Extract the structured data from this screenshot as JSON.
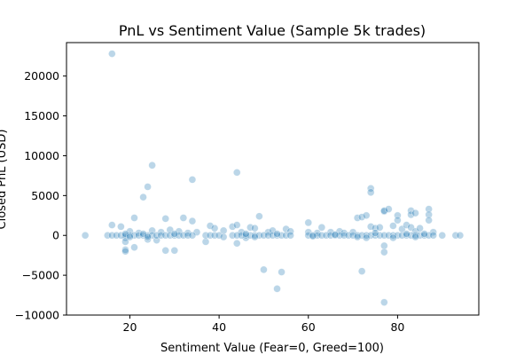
{
  "chart_data": {
    "type": "scatter",
    "title": "PnL vs Sentiment Value (Sample 5k trades)",
    "xlabel": "Sentiment Value (Fear=0, Greed=100)",
    "ylabel": "Closed PnL (USD)",
    "xlim": [
      5.8,
      98.2
    ],
    "ylim": [
      -10000,
      24200
    ],
    "xticks": [
      20,
      40,
      60,
      80
    ],
    "yticks": [
      -10000,
      -5000,
      0,
      5000,
      10000,
      15000,
      20000
    ],
    "xtick_labels": [
      "20",
      "40",
      "60",
      "80"
    ],
    "ytick_labels": [
      "−10000",
      "−5000",
      "0",
      "5000",
      "10000",
      "15000",
      "20000"
    ],
    "grid": false,
    "point_color": "#1f77b4",
    "point_opacity": 0.3,
    "series": [
      {
        "points": [
          [
            16,
            22800
          ],
          [
            25,
            8800
          ],
          [
            34,
            7000
          ],
          [
            44,
            7900
          ],
          [
            24,
            6100
          ],
          [
            23,
            4800
          ],
          [
            21,
            2200
          ],
          [
            28,
            2100
          ],
          [
            32,
            2200
          ],
          [
            34,
            1800
          ],
          [
            16,
            1300
          ],
          [
            18,
            1100
          ],
          [
            19,
            -300
          ],
          [
            19,
            -800
          ],
          [
            19,
            -1800
          ],
          [
            19,
            -2000
          ],
          [
            21,
            -1500
          ],
          [
            24,
            -500
          ],
          [
            26,
            -600
          ],
          [
            28,
            -1900
          ],
          [
            30,
            -1900
          ],
          [
            20,
            500
          ],
          [
            22,
            300
          ],
          [
            25,
            600
          ],
          [
            27,
            400
          ],
          [
            29,
            700
          ],
          [
            31,
            500
          ],
          [
            33,
            300
          ],
          [
            35,
            400
          ],
          [
            37,
            -800
          ],
          [
            38,
            1200
          ],
          [
            39,
            900
          ],
          [
            41,
            600
          ],
          [
            43,
            1100
          ],
          [
            44,
            1300
          ],
          [
            44,
            -1000
          ],
          [
            45,
            400
          ],
          [
            46,
            -300
          ],
          [
            47,
            1000
          ],
          [
            48,
            900
          ],
          [
            49,
            2400
          ],
          [
            50,
            -4300
          ],
          [
            51,
            400
          ],
          [
            52,
            600
          ],
          [
            53,
            -6700
          ],
          [
            54,
            -4600
          ],
          [
            55,
            800
          ],
          [
            56,
            500
          ],
          [
            60,
            1600
          ],
          [
            60,
            400
          ],
          [
            62,
            300
          ],
          [
            63,
            1000
          ],
          [
            65,
            400
          ],
          [
            67,
            500
          ],
          [
            68,
            300
          ],
          [
            70,
            400
          ],
          [
            71,
            2200
          ],
          [
            72,
            2300
          ],
          [
            72,
            -4500
          ],
          [
            73,
            2500
          ],
          [
            74,
            5900
          ],
          [
            74,
            5400
          ],
          [
            74,
            1100
          ],
          [
            75,
            900
          ],
          [
            76,
            1000
          ],
          [
            77,
            3000
          ],
          [
            77,
            3100
          ],
          [
            77,
            -1300
          ],
          [
            77,
            -2100
          ],
          [
            77,
            -8400
          ],
          [
            78,
            3300
          ],
          [
            79,
            1200
          ],
          [
            80,
            2500
          ],
          [
            80,
            1900
          ],
          [
            81,
            800
          ],
          [
            82,
            1300
          ],
          [
            83,
            3100
          ],
          [
            83,
            2600
          ],
          [
            83,
            1000
          ],
          [
            84,
            2800
          ],
          [
            84,
            500
          ],
          [
            85,
            900
          ],
          [
            87,
            3300
          ],
          [
            87,
            2600
          ],
          [
            87,
            1900
          ],
          [
            88,
            400
          ],
          [
            10,
            0
          ],
          [
            15,
            0
          ],
          [
            16,
            0
          ],
          [
            17,
            0
          ],
          [
            18,
            0
          ],
          [
            19,
            0
          ],
          [
            20,
            0
          ],
          [
            21,
            0
          ],
          [
            22,
            0
          ],
          [
            23,
            0
          ],
          [
            24,
            0
          ],
          [
            25,
            0
          ],
          [
            26,
            0
          ],
          [
            27,
            0
          ],
          [
            28,
            0
          ],
          [
            29,
            0
          ],
          [
            30,
            0
          ],
          [
            31,
            0
          ],
          [
            32,
            0
          ],
          [
            33,
            0
          ],
          [
            34,
            0
          ],
          [
            37,
            0
          ],
          [
            38,
            0
          ],
          [
            39,
            0
          ],
          [
            40,
            0
          ],
          [
            43,
            0
          ],
          [
            44,
            0
          ],
          [
            45,
            0
          ],
          [
            46,
            0
          ],
          [
            47,
            0
          ],
          [
            48,
            0
          ],
          [
            49,
            0
          ],
          [
            50,
            0
          ],
          [
            51,
            0
          ],
          [
            52,
            0
          ],
          [
            53,
            0
          ],
          [
            54,
            0
          ],
          [
            55,
            0
          ],
          [
            56,
            0
          ],
          [
            60,
            0
          ],
          [
            61,
            0
          ],
          [
            62,
            0
          ],
          [
            63,
            0
          ],
          [
            64,
            0
          ],
          [
            65,
            0
          ],
          [
            66,
            0
          ],
          [
            67,
            0
          ],
          [
            68,
            0
          ],
          [
            69,
            0
          ],
          [
            70,
            0
          ],
          [
            71,
            0
          ],
          [
            72,
            0
          ],
          [
            73,
            0
          ],
          [
            74,
            0
          ],
          [
            75,
            0
          ],
          [
            76,
            0
          ],
          [
            77,
            0
          ],
          [
            78,
            0
          ],
          [
            79,
            0
          ],
          [
            80,
            0
          ],
          [
            81,
            0
          ],
          [
            82,
            0
          ],
          [
            83,
            0
          ],
          [
            84,
            0
          ],
          [
            85,
            0
          ],
          [
            86,
            0
          ],
          [
            87,
            0
          ],
          [
            88,
            0
          ],
          [
            90,
            0
          ],
          [
            93,
            0
          ],
          [
            94,
            0
          ],
          [
            19,
            200
          ],
          [
            20,
            -200
          ],
          [
            23,
            200
          ],
          [
            24,
            -200
          ],
          [
            30,
            200
          ],
          [
            41,
            -200
          ],
          [
            46,
            200
          ],
          [
            48,
            -200
          ],
          [
            53,
            200
          ],
          [
            61,
            -100
          ],
          [
            66,
            100
          ],
          [
            71,
            -200
          ],
          [
            73,
            -300
          ],
          [
            75,
            300
          ],
          [
            79,
            -300
          ],
          [
            82,
            200
          ],
          [
            84,
            -200
          ],
          [
            86,
            200
          ]
        ]
      }
    ]
  }
}
